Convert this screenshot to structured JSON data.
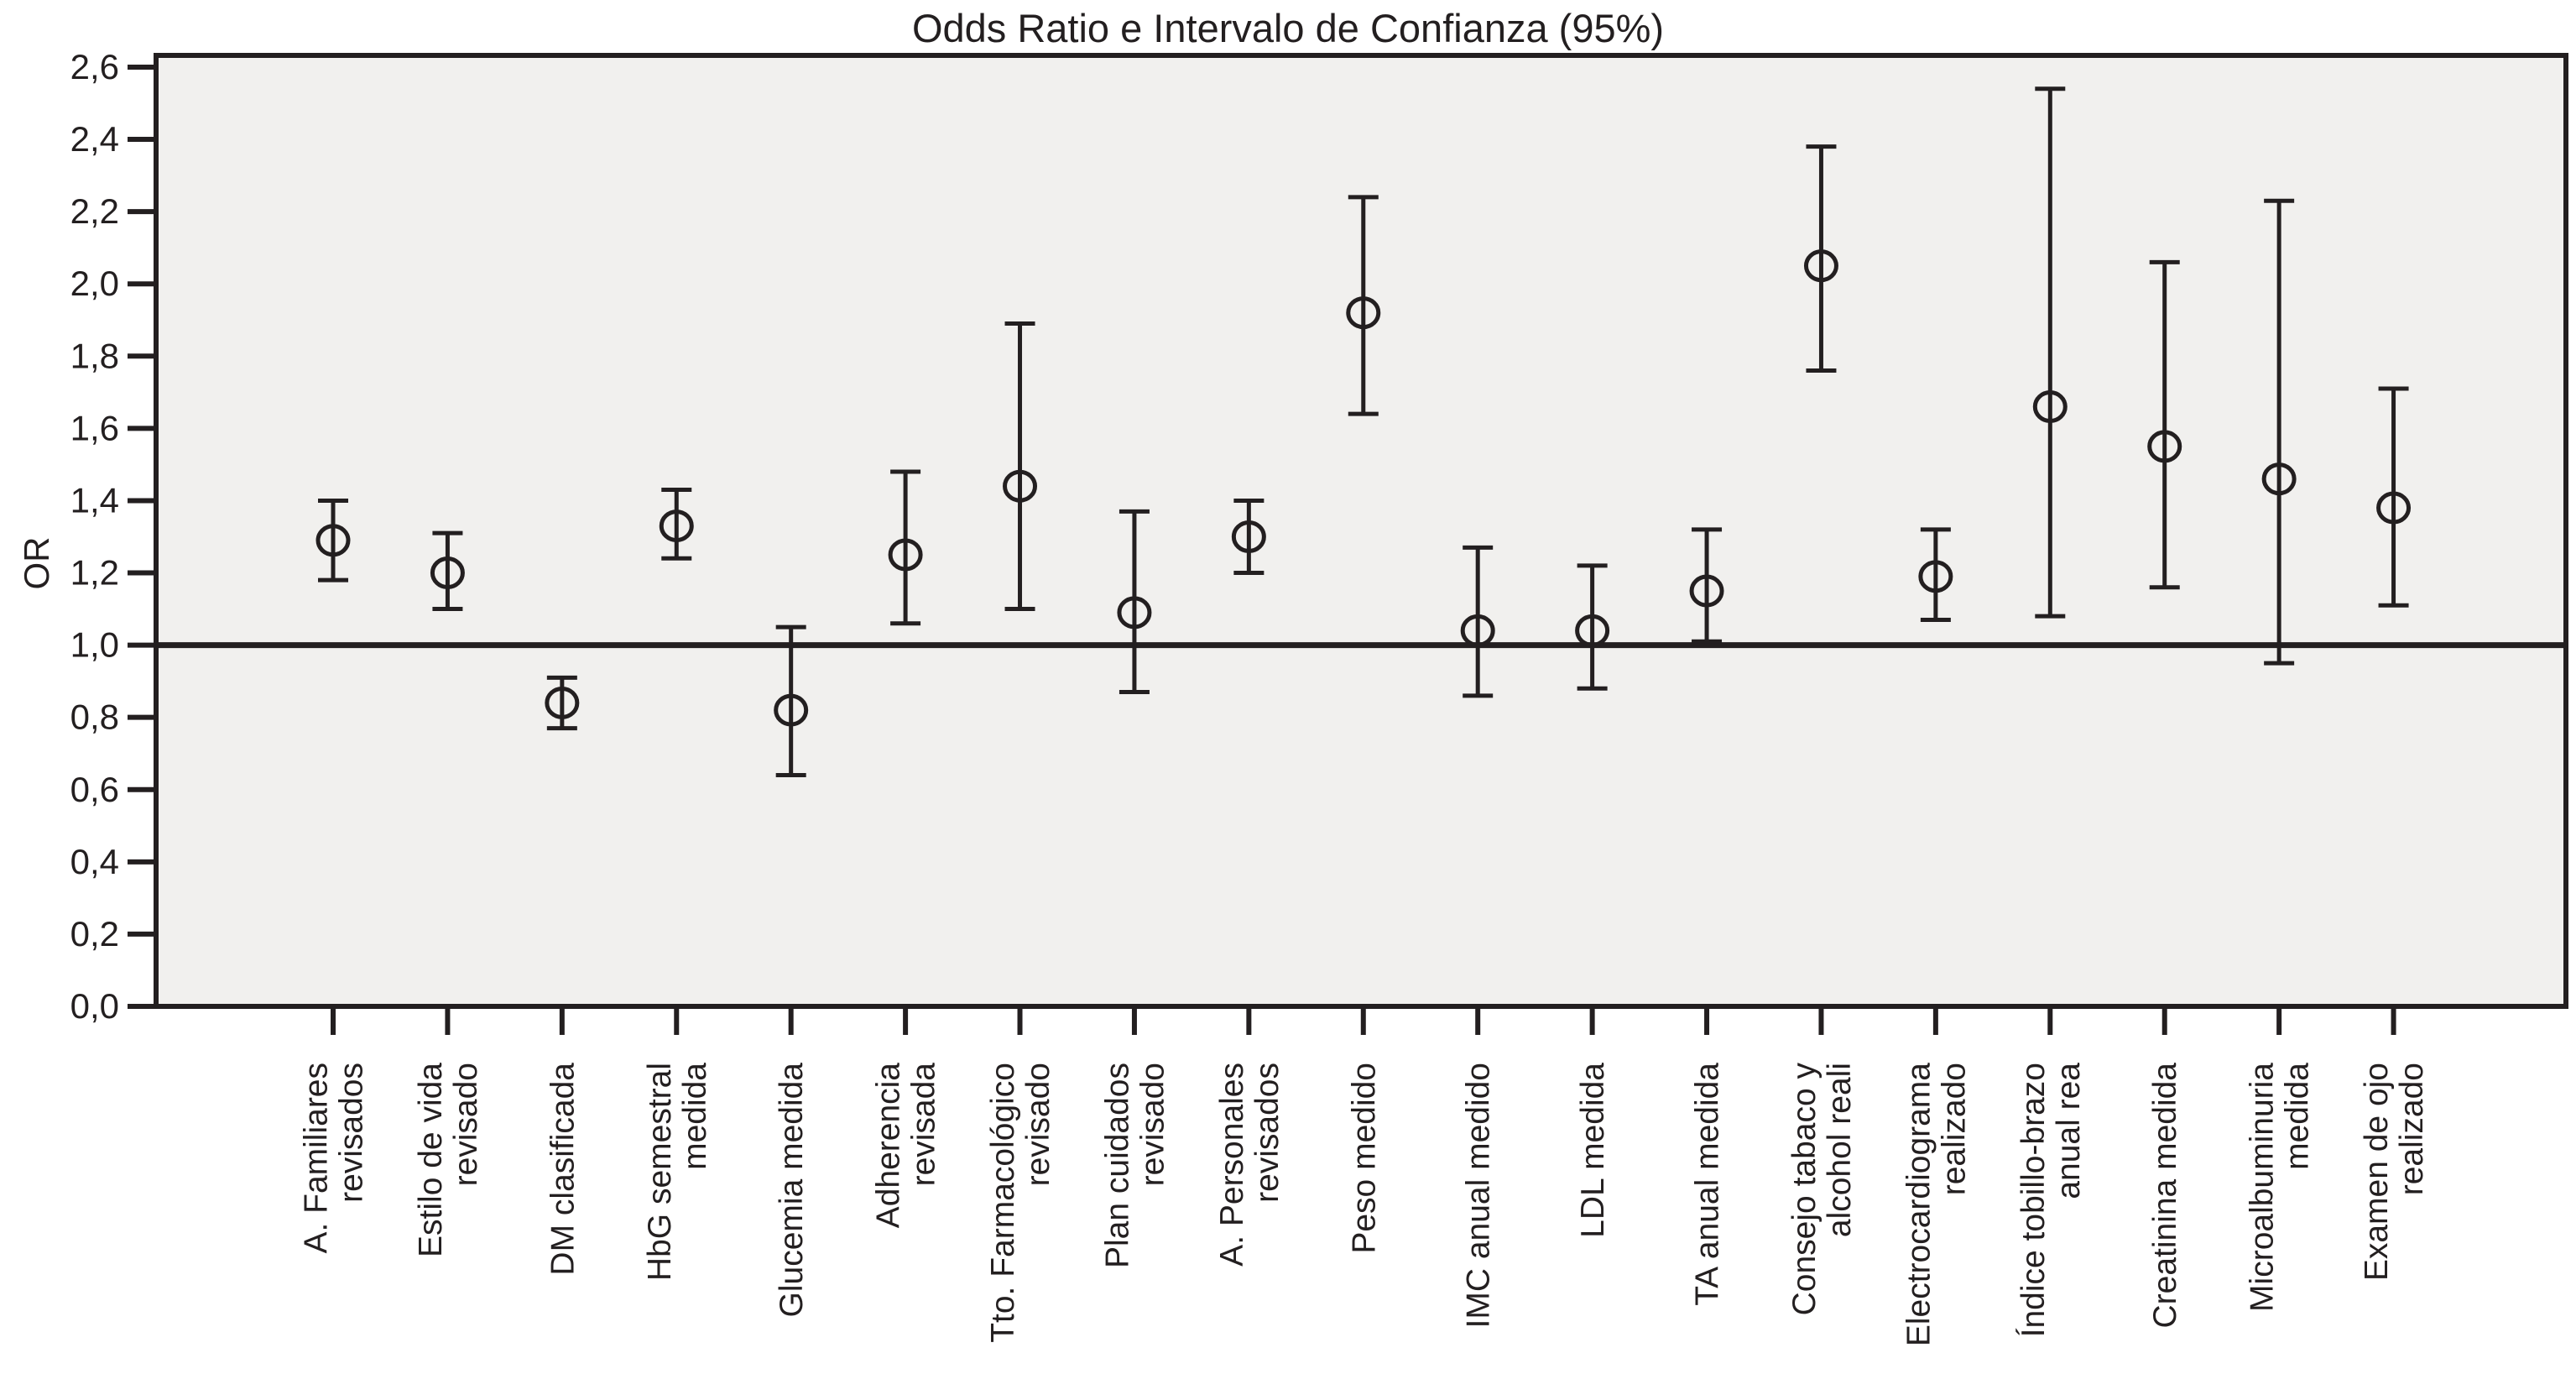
{
  "chart_data": {
    "type": "scatter",
    "subtype": "odds-ratio-error-bars",
    "title": "Odds Ratio e Intervalo de Confianza (95%)",
    "ylabel": "OR",
    "xlabel": "",
    "ylim": [
      0.0,
      2.6
    ],
    "ytick_step": 0.2,
    "ytick_labels": [
      "0,0",
      "0,2",
      "0,4",
      "0,6",
      "0,8",
      "1,0",
      "1,2",
      "1,4",
      "1,6",
      "1,8",
      "2,0",
      "2,2",
      "2,4",
      "2,6"
    ],
    "reference_line": 1.0,
    "grid": false,
    "legend": false,
    "plot_bg_color": "#f1f0ee",
    "line_color": "#231f20",
    "marker": "open-circle",
    "categories": [
      "A. Familiares revisados",
      "Estilo de vida revisado",
      "DM clasificada",
      "HbG semestral medida",
      "Glucemia medida",
      "Adherencia revisada",
      "Tto. Farmacológico revisado",
      "Plan cuidados revisado",
      "A. Personales revisados",
      "Peso medido",
      "IMC anual medido",
      "LDL medida",
      "TA anual medida",
      "Consejo tabaco y alcohol reali",
      "Electrocardiograma realizado",
      "Índice tobillo-brazo anual rea",
      "Creatinina medida",
      "Microalbuminuria medida",
      "Examen de ojo realizado"
    ],
    "points": [
      {
        "label": "A. Familiares revisados",
        "label_lines": [
          "A. Familiares",
          "revisados"
        ],
        "or": 1.29,
        "ci_low": 1.18,
        "ci_high": 1.4
      },
      {
        "label": "Estilo de vida revisado",
        "label_lines": [
          "Estilo de vida",
          "revisado"
        ],
        "or": 1.2,
        "ci_low": 1.1,
        "ci_high": 1.31
      },
      {
        "label": "DM clasificada",
        "label_lines": [
          "DM clasificada"
        ],
        "or": 0.84,
        "ci_low": 0.77,
        "ci_high": 0.91
      },
      {
        "label": "HbG semestral medida",
        "label_lines": [
          "HbG semestral",
          "medida"
        ],
        "or": 1.33,
        "ci_low": 1.24,
        "ci_high": 1.43
      },
      {
        "label": "Glucemia medida",
        "label_lines": [
          "Glucemia medida"
        ],
        "or": 0.82,
        "ci_low": 0.64,
        "ci_high": 1.05
      },
      {
        "label": "Adherencia revisada",
        "label_lines": [
          "Adherencia",
          "revisada"
        ],
        "or": 1.25,
        "ci_low": 1.06,
        "ci_high": 1.48
      },
      {
        "label": "Tto. Farmacológico revisado",
        "label_lines": [
          "Tto. Farmacológico",
          "revisado"
        ],
        "or": 1.44,
        "ci_low": 1.1,
        "ci_high": 1.89
      },
      {
        "label": "Plan cuidados revisado",
        "label_lines": [
          "Plan cuidados",
          "revisado"
        ],
        "or": 1.09,
        "ci_low": 0.87,
        "ci_high": 1.37
      },
      {
        "label": "A. Personales revisados",
        "label_lines": [
          "A. Personales",
          "revisados"
        ],
        "or": 1.3,
        "ci_low": 1.2,
        "ci_high": 1.4
      },
      {
        "label": "Peso medido",
        "label_lines": [
          "Peso medido"
        ],
        "or": 1.92,
        "ci_low": 1.64,
        "ci_high": 2.24
      },
      {
        "label": "IMC anual medido",
        "label_lines": [
          "IMC anual medido"
        ],
        "or": 1.04,
        "ci_low": 0.86,
        "ci_high": 1.27
      },
      {
        "label": "LDL medida",
        "label_lines": [
          "LDL medida"
        ],
        "or": 1.04,
        "ci_low": 0.88,
        "ci_high": 1.22
      },
      {
        "label": "TA anual medida",
        "label_lines": [
          "TA anual medida"
        ],
        "or": 1.15,
        "ci_low": 1.01,
        "ci_high": 1.32
      },
      {
        "label": "Consejo tabaco y alcohol reali",
        "label_lines": [
          "Consejo tabaco y",
          "alcohol reali"
        ],
        "or": 2.05,
        "ci_low": 1.76,
        "ci_high": 2.38
      },
      {
        "label": "Electrocardiograma realizado",
        "label_lines": [
          "Electrocardiograma",
          "realizado"
        ],
        "or": 1.19,
        "ci_low": 1.07,
        "ci_high": 1.32
      },
      {
        "label": "Índice tobillo-brazo anual rea",
        "label_lines": [
          "Índice tobillo-brazo",
          "anual rea"
        ],
        "or": 1.66,
        "ci_low": 1.08,
        "ci_high": 2.54
      },
      {
        "label": "Creatinina medida",
        "label_lines": [
          "Creatinina medida"
        ],
        "or": 1.55,
        "ci_low": 1.16,
        "ci_high": 2.06
      },
      {
        "label": "Microalbuminuria medida",
        "label_lines": [
          "Microalbuminuria",
          "medida"
        ],
        "or": 1.46,
        "ci_low": 0.95,
        "ci_high": 2.23
      },
      {
        "label": "Examen de ojo realizado",
        "label_lines": [
          "Examen de ojo",
          "realizado"
        ],
        "or": 1.38,
        "ci_low": 1.11,
        "ci_high": 1.71
      }
    ]
  }
}
